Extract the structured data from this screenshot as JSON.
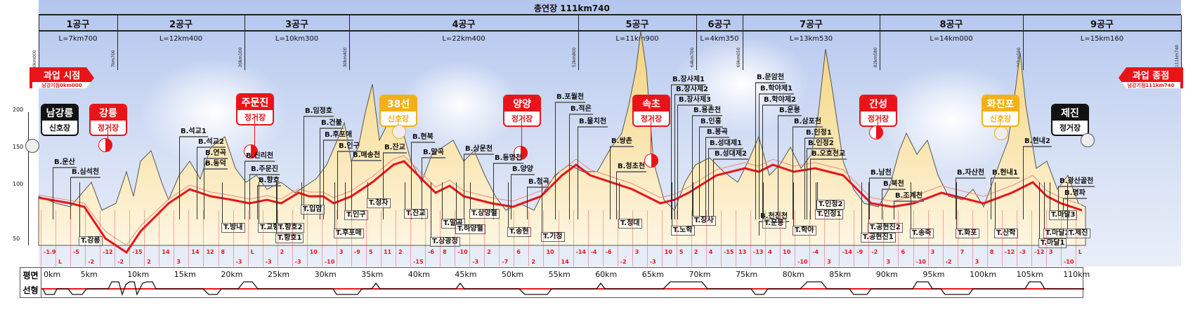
{
  "header": {
    "total_length": "총연장 111km740",
    "sections": [
      {
        "name": "1공구",
        "length": "L=7km700"
      },
      {
        "name": "2공구",
        "length": "L=12km400"
      },
      {
        "name": "3공구",
        "length": "L=10km300"
      },
      {
        "name": "4공구",
        "length": "L=22km400"
      },
      {
        "name": "5공구",
        "length": "L=11km900"
      },
      {
        "name": "6공구",
        "length": "L=4km350"
      },
      {
        "name": "7공구",
        "length": "L=13km530"
      },
      {
        "name": "8공구",
        "length": "L=14km000"
      },
      {
        "name": "9공구",
        "length": "L=15km160"
      }
    ],
    "chainages": [
      "0km000",
      "7km700",
      "20km100",
      "30km400",
      "52km800",
      "64km700",
      "69km050",
      "82km580",
      "96km580",
      "111km740"
    ]
  },
  "markers": {
    "start": {
      "title": "과업 시점",
      "sub": "남강기점0km000"
    },
    "end": {
      "title": "과업 종점",
      "sub": "남강기점111km740"
    }
  },
  "stations": [
    {
      "name": "남강릉",
      "type": "신호장"
    },
    {
      "name": "강릉",
      "type": "정거장"
    },
    {
      "name": "주문진",
      "type": "정거장"
    },
    {
      "name": "38선",
      "type": "신호장"
    },
    {
      "name": "양양",
      "type": "정거장"
    },
    {
      "name": "속초",
      "type": "정거장"
    },
    {
      "name": "간성",
      "type": "정거장"
    },
    {
      "name": "화진포",
      "type": "신호장"
    },
    {
      "name": "제진",
      "type": "정거장"
    }
  ],
  "colors": {
    "station": "#e8141a",
    "signal": "#f4b015",
    "terminal": "#111111",
    "alignment": "#e8141a",
    "terrain": "#f7dc8c"
  },
  "y_axis": [
    "200",
    "150",
    "100",
    "50"
  ],
  "bridges": [
    "B.운산",
    "B.심석천",
    "B.석교1",
    "B.석교2",
    "B.연곡",
    "B.동덕",
    "B.신리천",
    "B.주문진",
    "B.향호",
    "B.임정호",
    "B.건불",
    "B.후포매",
    "B.인구",
    "B.매송천",
    "B.잔교",
    "B.현북",
    "B.말곡",
    "B.상운천",
    "B.동명천",
    "B.양양",
    "B.청곡",
    "B.포월천",
    "B.적은",
    "B.물치천",
    "B.쌍촌",
    "B.청초천",
    "B.장사제1",
    "B.장사제2",
    "B.장사제3",
    "B.용촌천",
    "B.인흥",
    "B.봉곡",
    "B.성대제1",
    "B.성대제2",
    "B.천진천",
    "B.문암천",
    "B.학야제1",
    "B.학야제2",
    "B.운봉",
    "B.삼포천",
    "B.인정1",
    "B.인정2",
    "B.오호천교",
    "B.남천",
    "B.북천",
    "B.조계천",
    "B.자산천",
    "B.현내1",
    "B.현내2",
    "B.광산골천",
    "B.명파"
  ],
  "tunnels": [
    "T.강릉",
    "T.방내",
    "T.교항",
    "T.향호2",
    "T.향호1",
    "T.입암",
    "T.후포매",
    "T.인구",
    "T.정자",
    "T.잔교",
    "T.말곡",
    "T.상광정",
    "T.하양혈",
    "T.상양혈",
    "T.송현",
    "T.기정",
    "T.청대",
    "T.노학",
    "T.장사",
    "T.운봉",
    "T.학야",
    "T.인정2",
    "T.인정1",
    "T.공현진2",
    "T.공현진1",
    "T.송죽",
    "T.화포",
    "T.산학",
    "T.마달3",
    "T.마달2",
    "T.제진",
    "T.마달1"
  ],
  "gradients": [
    "-1.9",
    "L",
    "-5",
    "-2",
    "-12",
    "-2",
    "-15",
    "2",
    "14",
    "3",
    "14",
    "12",
    "8",
    "-3",
    "L",
    "-3",
    "2",
    "-3",
    "10",
    "-10",
    "3",
    "-9",
    "5",
    "11",
    "2",
    "-15",
    "-6",
    "8",
    "-10",
    "-3",
    "2",
    "-7",
    "6",
    "2",
    "10",
    "14",
    "-14",
    "-4",
    "-6",
    "-2",
    "3",
    "-3",
    "10",
    "5",
    "2",
    "4",
    "-15",
    "13",
    "-13",
    "4",
    "10",
    "-10",
    "-4",
    "3",
    "-14",
    "-9",
    "-2",
    "3",
    "6",
    "-10",
    "3",
    "-2",
    "7",
    "3",
    "8",
    "-12",
    "-3",
    "-12",
    "3",
    "-10",
    "L"
  ],
  "plan": {
    "label_top": "평면",
    "label_bottom": "선형",
    "km_ticks": [
      "0km",
      "5km",
      "10km",
      "15km",
      "20km",
      "25km",
      "30km",
      "35km",
      "40km",
      "45km",
      "50km",
      "55km",
      "60km",
      "65km",
      "70km",
      "75km",
      "80km",
      "85km",
      "90km",
      "95km",
      "100km",
      "105km",
      "110km"
    ]
  }
}
